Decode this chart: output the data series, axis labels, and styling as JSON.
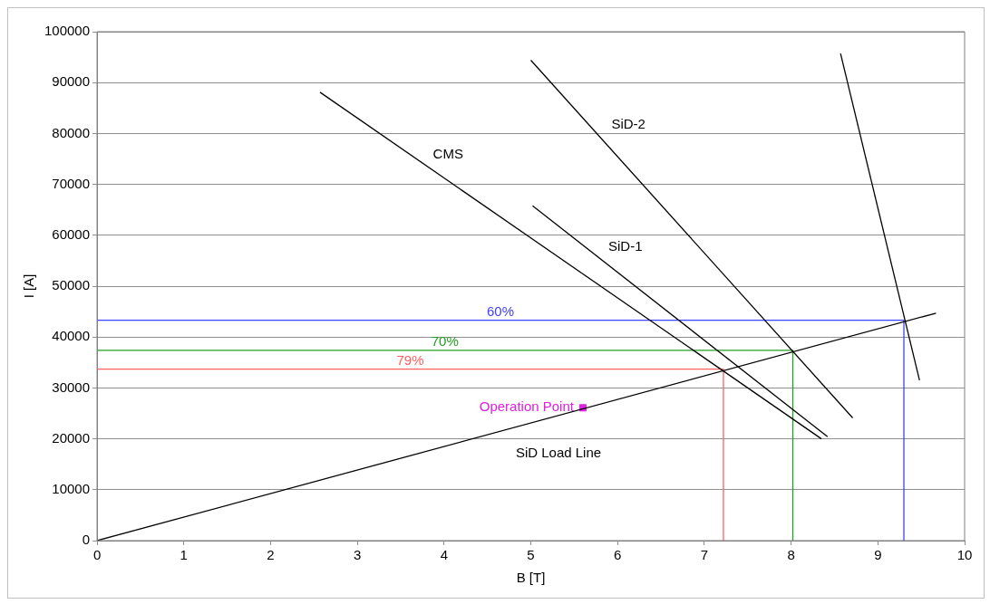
{
  "chart_data": {
    "type": "line",
    "xlabel": "B [T]",
    "ylabel": "I [A]",
    "xlim": [
      0,
      10
    ],
    "ylim": [
      0,
      100000
    ],
    "xticks": [
      0,
      1,
      2,
      3,
      4,
      5,
      6,
      7,
      8,
      9,
      10
    ],
    "yticks": [
      0,
      10000,
      20000,
      30000,
      40000,
      50000,
      60000,
      70000,
      80000,
      90000,
      100000
    ],
    "grid": "y",
    "marker": "none",
    "line_style": "solid",
    "series": [
      {
        "name": "CMS",
        "color": "#000000",
        "x": [
          2.57,
          8.35
        ],
        "values": [
          88100,
          20000
        ]
      },
      {
        "name": "SiD-1",
        "color": "#000000",
        "x": [
          5.02,
          8.42
        ],
        "values": [
          65800,
          20400
        ]
      },
      {
        "name": "SiD-2",
        "color": "#000000",
        "x": [
          5.0,
          8.71
        ],
        "values": [
          94400,
          24100
        ]
      },
      {
        "color": "#000000",
        "x": [
          8.57,
          9.48
        ],
        "values": [
          95700,
          31500
        ]
      },
      {
        "name": "SiD Load Line",
        "color": "#000000",
        "x": [
          0,
          9.67
        ],
        "values": [
          0,
          44700
        ]
      },
      {
        "name": "60%",
        "color": "#4040ff",
        "x": [
          0,
          9.3,
          9.3
        ],
        "values": [
          43300,
          43300,
          0
        ]
      },
      {
        "name": "70%",
        "color": "#20a020",
        "x": [
          0,
          8.02,
          8.02
        ],
        "values": [
          37400,
          37400,
          0
        ]
      },
      {
        "name": "79%",
        "color": "#ff6060",
        "x": [
          0,
          7.22,
          7.22
        ],
        "values": [
          33700,
          33700,
          0
        ]
      },
      {
        "name": "Operation Point",
        "type": "scatter",
        "marker": "square",
        "color": "#e020e0",
        "x": [
          5.6
        ],
        "values": [
          26100
        ]
      }
    ]
  }
}
